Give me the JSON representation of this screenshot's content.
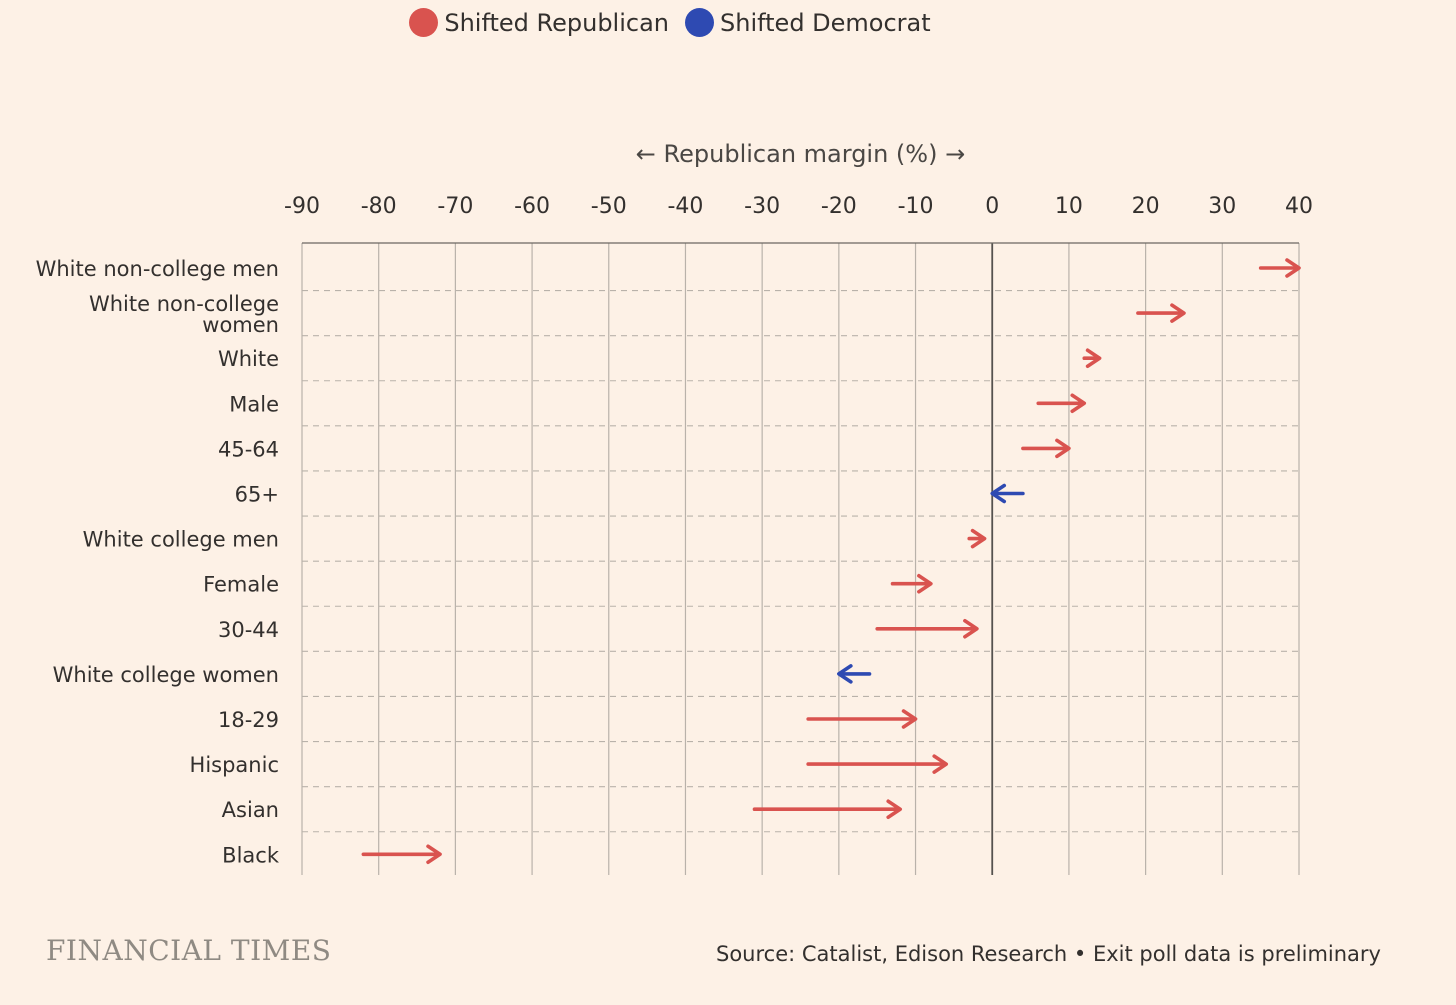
{
  "legend": {
    "republican_label": "Shifted Republican",
    "democrat_label": "Shifted Democrat"
  },
  "colors": {
    "republican": "#d9534f",
    "democrat": "#2e4ab2",
    "grid": "#b9b2aa",
    "zero_line": "#55524f",
    "background": "#fdf1e6"
  },
  "chart_data": {
    "type": "arrow",
    "axis_title": "← Republican margin (%) →",
    "xlim": [
      -90,
      40
    ],
    "xticks": [
      -90,
      -80,
      -70,
      -60,
      -50,
      -40,
      -30,
      -20,
      -10,
      0,
      10,
      20,
      30,
      40
    ],
    "tick_labels": [
      "-90",
      "-80",
      "-70",
      "-60",
      "-50",
      "-40",
      "-30",
      "-20",
      "-10",
      "0",
      "10",
      "20",
      "30",
      "40"
    ],
    "series_names": [
      "Shifted Republican",
      "Shifted Democrat"
    ],
    "rows": [
      {
        "label": [
          "White non-college men"
        ],
        "from": 35,
        "to": 40,
        "shift": "republican"
      },
      {
        "label": [
          "White non-college",
          "women"
        ],
        "from": 19,
        "to": 25,
        "shift": "republican"
      },
      {
        "label": [
          "White"
        ],
        "from": 12,
        "to": 14,
        "shift": "republican"
      },
      {
        "label": [
          "Male"
        ],
        "from": 6,
        "to": 12,
        "shift": "republican"
      },
      {
        "label": [
          "45-64"
        ],
        "from": 4,
        "to": 10,
        "shift": "republican"
      },
      {
        "label": [
          "65+"
        ],
        "from": 4,
        "to": 0,
        "shift": "democrat"
      },
      {
        "label": [
          "White college men"
        ],
        "from": -3,
        "to": -1,
        "shift": "republican"
      },
      {
        "label": [
          "Female"
        ],
        "from": -13,
        "to": -8,
        "shift": "republican"
      },
      {
        "label": [
          "30-44"
        ],
        "from": -15,
        "to": -2,
        "shift": "republican"
      },
      {
        "label": [
          "White college women"
        ],
        "from": -16,
        "to": -20,
        "shift": "democrat"
      },
      {
        "label": [
          "18-29"
        ],
        "from": -24,
        "to": -10,
        "shift": "republican"
      },
      {
        "label": [
          "Hispanic"
        ],
        "from": -24,
        "to": -6,
        "shift": "republican"
      },
      {
        "label": [
          "Asian"
        ],
        "from": -31,
        "to": -12,
        "shift": "republican"
      },
      {
        "label": [
          "Black"
        ],
        "from": -82,
        "to": -72,
        "shift": "republican"
      }
    ]
  },
  "footer": {
    "brand": "FINANCIAL TIMES",
    "source": "Source: Catalist, Edison Research • Exit poll data is preliminary"
  }
}
